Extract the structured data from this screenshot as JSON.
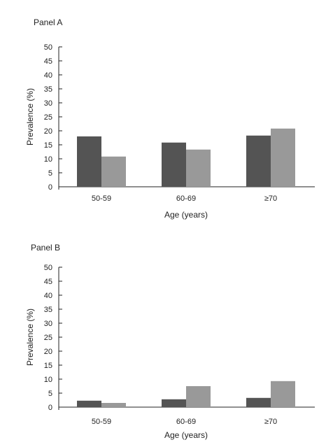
{
  "colors": {
    "series_1": "#545454",
    "series_2": "#999999"
  },
  "chart_data": [
    {
      "type": "bar",
      "title": "Panel A",
      "xlabel": "Age (years)",
      "ylabel": "Prevalence (%)",
      "ylim": [
        0,
        50
      ],
      "yticks": [
        "0",
        "5",
        "10",
        "15",
        "20",
        "25",
        "30",
        "35",
        "40",
        "45",
        "50"
      ],
      "categories": [
        "50-59",
        "60-69",
        "≥70"
      ],
      "series": [
        {
          "values": [
            18.0,
            15.8,
            18.3
          ]
        },
        {
          "values": [
            10.8,
            13.3,
            20.8
          ]
        }
      ]
    },
    {
      "type": "bar",
      "title": "Panel B",
      "xlabel": "Age (years)",
      "ylabel": "Prevalence (%)",
      "ylim": [
        0,
        50
      ],
      "yticks": [
        "0",
        "5",
        "10",
        "15",
        "20",
        "25",
        "30",
        "35",
        "40",
        "45",
        "50"
      ],
      "categories": [
        "50-59",
        "60-69",
        "≥70"
      ],
      "series": [
        {
          "values": [
            2.3,
            2.8,
            3.3
          ]
        },
        {
          "values": [
            1.5,
            7.5,
            9.3
          ]
        }
      ]
    }
  ]
}
